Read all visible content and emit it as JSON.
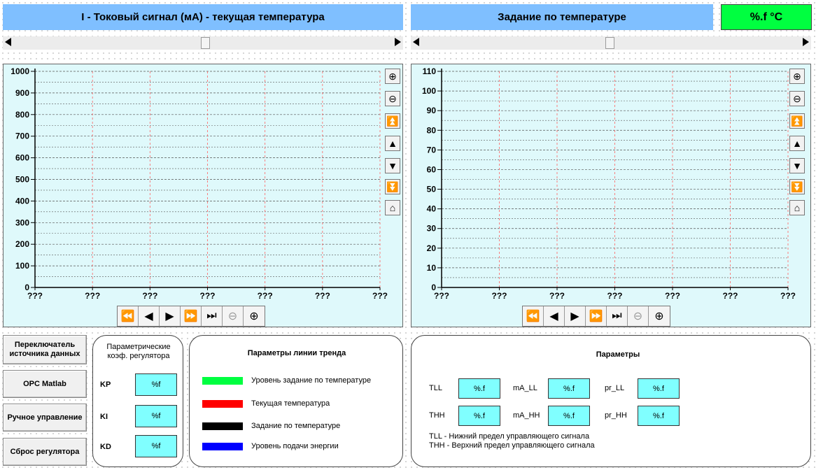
{
  "header": {
    "left_title": "I - Токовый сигнал (мА) - текущая температура",
    "right_title": "Задание по температуре",
    "temp_value": "%.f °C"
  },
  "chart_left": {
    "y_ticks": [
      "1000",
      "900",
      "800",
      "700",
      "600",
      "500",
      "400",
      "300",
      "200",
      "100",
      "0"
    ],
    "x_ticks": [
      "???",
      "???",
      "???",
      "???",
      "???",
      "???",
      "???"
    ]
  },
  "chart_right": {
    "y_ticks": [
      "110",
      "100",
      "90",
      "80",
      "70",
      "60",
      "50",
      "40",
      "30",
      "20",
      "10",
      "0"
    ],
    "x_ticks": [
      "???",
      "???",
      "???",
      "???",
      "???",
      "???",
      "???"
    ]
  },
  "chart_data": [
    {
      "type": "line",
      "title": "",
      "xlabel": "",
      "ylabel": "",
      "ylim": [
        0,
        1000
      ],
      "y_tick_values": [
        0,
        100,
        200,
        300,
        400,
        500,
        600,
        700,
        800,
        900,
        1000
      ],
      "x_tick_labels": [
        "???",
        "???",
        "???",
        "???",
        "???",
        "???",
        "???"
      ],
      "grid": true,
      "series": []
    },
    {
      "type": "line",
      "title": "",
      "xlabel": "",
      "ylabel": "",
      "ylim": [
        0,
        110
      ],
      "y_tick_values": [
        0,
        10,
        20,
        30,
        40,
        50,
        60,
        70,
        80,
        90,
        100,
        110
      ],
      "x_tick_labels": [
        "???",
        "???",
        "???",
        "???",
        "???",
        "???",
        "???"
      ],
      "grid": true,
      "series": []
    }
  ],
  "side_buttons": {
    "source_switch": "Переключатель источника данных",
    "opc": "OPC Matlab",
    "manual": "Ручное управление",
    "reset": "Сброс регулятора"
  },
  "regulator": {
    "title": "Параметрические коэф. регулятора",
    "kp_label": "KP",
    "kp_value": "%f",
    "ki_label": "KI",
    "ki_value": "%f",
    "kd_label": "KD",
    "kd_value": "%f"
  },
  "trend": {
    "title": "Параметры линии тренда",
    "items": [
      {
        "label": "Уровень задание по температуре",
        "color": "#00ff40"
      },
      {
        "label": "Текущая температура",
        "color": "#ff0000"
      },
      {
        "label": "Задание по температуре",
        "color": "#000000"
      },
      {
        "label": "Уровень подачи энергии",
        "color": "#0000ff"
      }
    ]
  },
  "params": {
    "title": "Параметры",
    "tll_label": "TLL",
    "tll_value": "%.f",
    "mall_label": "mA_LL",
    "mall_value": "%.f",
    "prll_label": "pr_LL",
    "prll_value": "%.f",
    "thh_label": "THH",
    "thh_value": "%.f",
    "mahh_label": "mA_HH",
    "mahh_value": "%.f",
    "prhh_label": "pr_HH",
    "prhh_value": "%.f",
    "note1": "TLL - Нижний предел управляющего сигнала",
    "note2": "THH - Верхний предел управляющего сигнала"
  },
  "colors": {
    "title_bg": "#7fbfff",
    "temp_bg": "#00ff40",
    "chart_bg": "#dff9fb",
    "value_bg": "#80ffff",
    "grid_h": "#555555",
    "grid_v": "#ff6060"
  }
}
